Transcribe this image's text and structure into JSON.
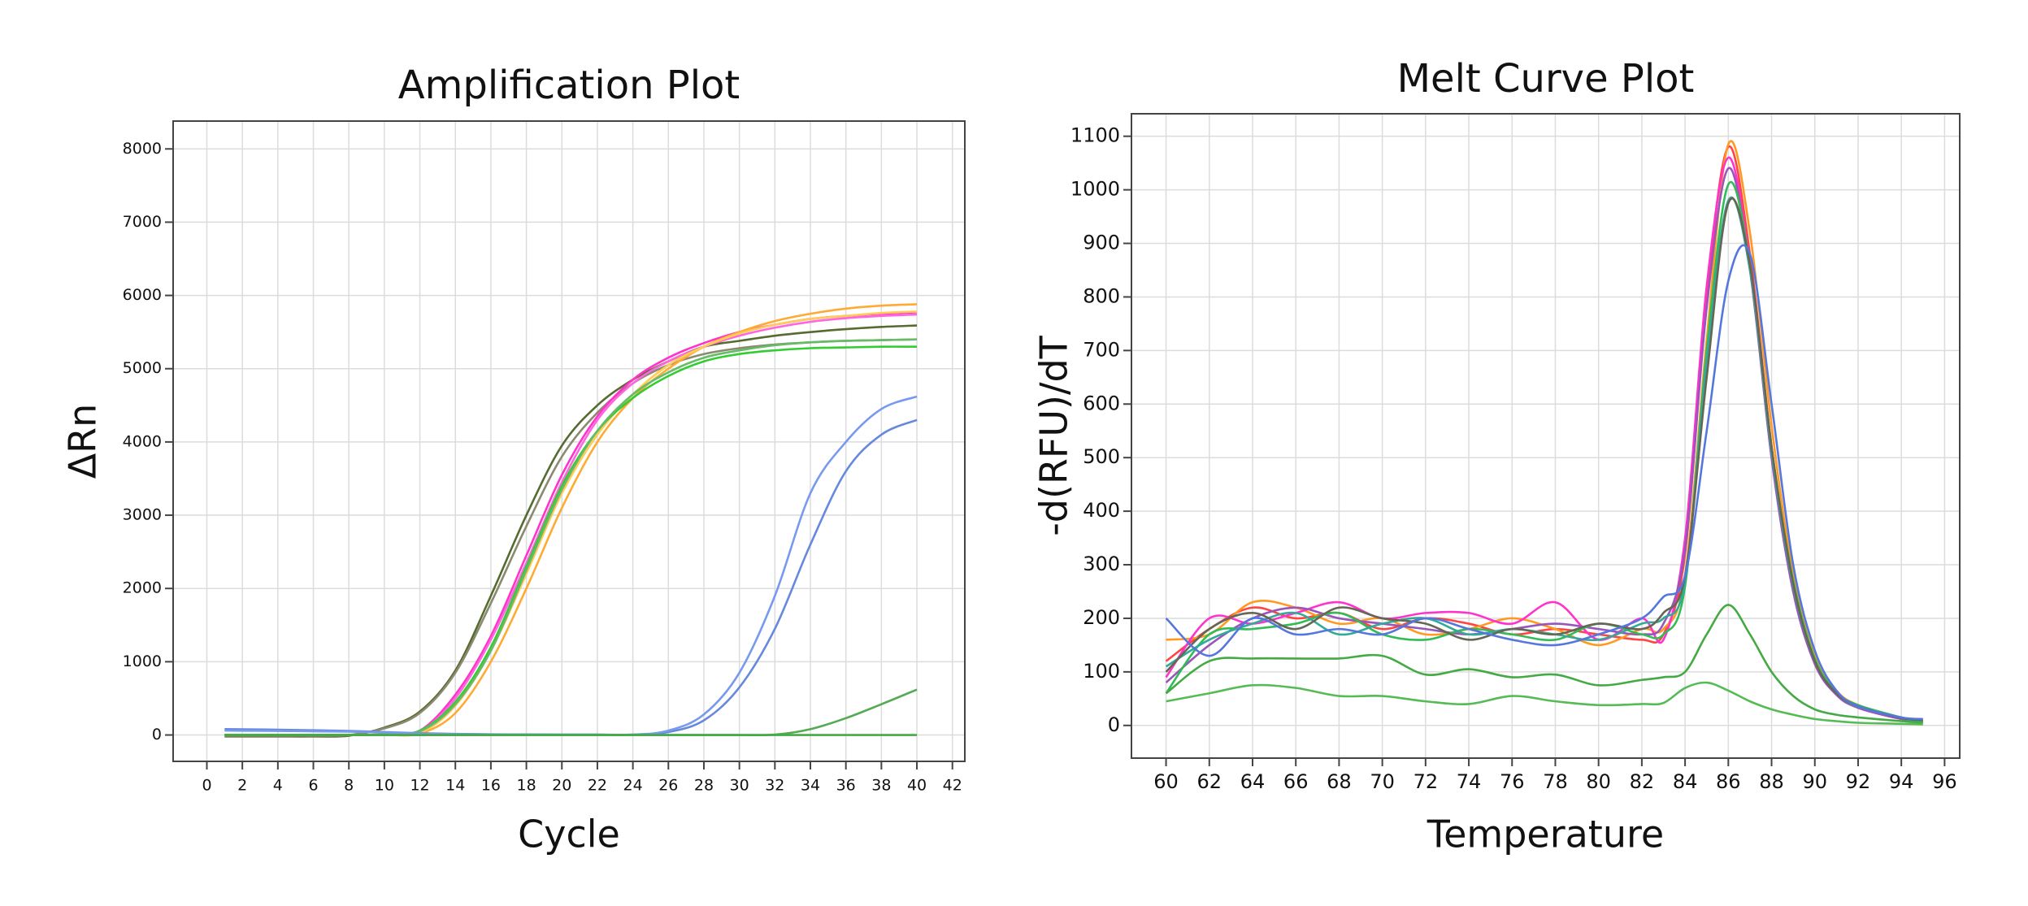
{
  "chart_data": [
    {
      "type": "line",
      "title": "Amplification Plot",
      "xlabel": "Cycle",
      "ylabel": "ΔRn",
      "x": [
        1,
        2,
        4,
        6,
        8,
        10,
        12,
        14,
        16,
        18,
        20,
        22,
        24,
        26,
        28,
        30,
        32,
        34,
        36,
        38,
        40
      ],
      "series": [
        {
          "color": "#556b2f",
          "values": [
            -20,
            -20,
            -20,
            -20,
            -10,
            100,
            320,
            880,
            1900,
            3000,
            3950,
            4500,
            4850,
            5100,
            5300,
            5380,
            5450,
            5500,
            5540,
            5570,
            5590
          ]
        },
        {
          "color": "#8a8a70",
          "values": [
            -10,
            -10,
            -10,
            -10,
            0,
            90,
            300,
            850,
            1800,
            2850,
            3800,
            4400,
            4800,
            5050,
            5200,
            5280,
            5330,
            5360,
            5380,
            5390,
            5400
          ]
        },
        {
          "color": "#ff33cc",
          "values": [
            0,
            0,
            0,
            0,
            0,
            10,
            60,
            550,
            1350,
            2450,
            3550,
            4350,
            4850,
            5150,
            5350,
            5500,
            5600,
            5680,
            5720,
            5750,
            5770
          ]
        },
        {
          "color": "#ff66dd",
          "values": [
            0,
            0,
            0,
            0,
            0,
            10,
            50,
            500,
            1300,
            2350,
            3450,
            4300,
            4800,
            5100,
            5300,
            5450,
            5560,
            5640,
            5690,
            5720,
            5740
          ]
        },
        {
          "color": "#ffaa33",
          "values": [
            0,
            0,
            0,
            0,
            0,
            5,
            20,
            300,
            1000,
            2000,
            3100,
            4000,
            4600,
            5000,
            5300,
            5500,
            5650,
            5750,
            5820,
            5860,
            5880
          ]
        },
        {
          "color": "#ffcc55",
          "values": [
            0,
            0,
            0,
            0,
            0,
            5,
            30,
            400,
            1150,
            2200,
            3300,
            4100,
            4650,
            5050,
            5300,
            5480,
            5600,
            5680,
            5720,
            5760,
            5780
          ]
        },
        {
          "color": "#33cc33",
          "values": [
            0,
            0,
            0,
            0,
            0,
            10,
            60,
            450,
            1200,
            2300,
            3400,
            4150,
            4600,
            4900,
            5100,
            5200,
            5250,
            5280,
            5290,
            5300,
            5300
          ]
        },
        {
          "color": "#66bb66",
          "values": [
            0,
            0,
            0,
            0,
            0,
            10,
            50,
            420,
            1150,
            2250,
            3350,
            4150,
            4650,
            4950,
            5150,
            5250,
            5320,
            5360,
            5380,
            5390,
            5400
          ]
        },
        {
          "color": "#6688dd",
          "values": [
            80,
            78,
            72,
            65,
            55,
            40,
            25,
            15,
            10,
            8,
            6,
            5,
            5,
            40,
            200,
            650,
            1450,
            2600,
            3600,
            4100,
            4300
          ]
        },
        {
          "color": "#7799ee",
          "values": [
            60,
            58,
            55,
            50,
            45,
            35,
            20,
            12,
            8,
            6,
            5,
            5,
            5,
            60,
            280,
            850,
            1900,
            3300,
            4000,
            4450,
            4620
          ]
        },
        {
          "color": "#55aa55",
          "values": [
            0,
            0,
            0,
            0,
            0,
            0,
            0,
            0,
            0,
            0,
            0,
            0,
            0,
            0,
            0,
            0,
            5,
            80,
            230,
            420,
            620
          ]
        },
        {
          "color": "#44aa44",
          "values": [
            0,
            0,
            0,
            0,
            0,
            0,
            0,
            0,
            0,
            0,
            0,
            0,
            0,
            0,
            0,
            0,
            0,
            0,
            0,
            0,
            0
          ]
        }
      ],
      "xlim": [
        -1.9,
        42.7
      ],
      "xticks": [
        0,
        2,
        4,
        6,
        8,
        10,
        12,
        14,
        16,
        18,
        20,
        22,
        24,
        26,
        28,
        30,
        32,
        34,
        36,
        38,
        40,
        42
      ],
      "ylim": [
        -360,
        8380
      ],
      "yticks": [
        0,
        1000,
        2000,
        3000,
        4000,
        5000,
        6000,
        7000,
        8000
      ],
      "grid": true
    },
    {
      "type": "line",
      "title": "Melt Curve Plot",
      "xlabel": "Temperature",
      "ylabel": "-d(RFU)/dT",
      "x": [
        60,
        62,
        64,
        66,
        68,
        70,
        72,
        74,
        76,
        78,
        80,
        82,
        83,
        84,
        85,
        86,
        87,
        88,
        89,
        90,
        91,
        92,
        94,
        95
      ],
      "series": [
        {
          "color": "#ff4444",
          "values": [
            120,
            180,
            220,
            200,
            210,
            180,
            200,
            190,
            170,
            180,
            170,
            160,
            170,
            320,
            800,
            1080,
            880,
            520,
            260,
            120,
            60,
            35,
            12,
            8
          ]
        },
        {
          "color": "#ff9922",
          "values": [
            160,
            170,
            230,
            220,
            190,
            200,
            170,
            180,
            200,
            180,
            150,
            180,
            180,
            280,
            720,
            1085,
            920,
            560,
            280,
            130,
            65,
            38,
            14,
            8
          ]
        },
        {
          "color": "#ff33cc",
          "values": [
            90,
            200,
            190,
            210,
            230,
            200,
            210,
            210,
            190,
            230,
            160,
            200,
            160,
            350,
            820,
            1060,
            860,
            500,
            250,
            115,
            58,
            33,
            12,
            7
          ]
        },
        {
          "color": "#9955bb",
          "values": [
            80,
            150,
            200,
            220,
            200,
            190,
            180,
            170,
            180,
            190,
            180,
            170,
            190,
            330,
            780,
            1040,
            850,
            500,
            250,
            115,
            57,
            33,
            12,
            6
          ]
        },
        {
          "color": "#33bb55",
          "values": [
            60,
            170,
            180,
            190,
            210,
            170,
            160,
            180,
            170,
            160,
            190,
            170,
            170,
            260,
            700,
            1010,
            860,
            520,
            270,
            125,
            62,
            38,
            15,
            6
          ]
        },
        {
          "color": "#33aa99",
          "values": [
            110,
            160,
            190,
            210,
            170,
            190,
            200,
            170,
            180,
            170,
            160,
            190,
            200,
            270,
            680,
            980,
            850,
            510,
            260,
            120,
            60,
            35,
            14,
            5
          ]
        },
        {
          "color": "#666655",
          "values": [
            100,
            180,
            210,
            180,
            220,
            200,
            190,
            160,
            180,
            170,
            190,
            180,
            210,
            280,
            650,
            975,
            860,
            520,
            265,
            120,
            60,
            36,
            14,
            10
          ]
        },
        {
          "color": "#5577dd",
          "values": [
            200,
            130,
            200,
            170,
            180,
            170,
            200,
            180,
            160,
            150,
            170,
            200,
            240,
            280,
            550,
            830,
            880,
            600,
            300,
            140,
            65,
            36,
            15,
            12
          ]
        },
        {
          "color": "#44aa44",
          "values": [
            60,
            120,
            125,
            125,
            125,
            130,
            95,
            105,
            90,
            95,
            75,
            85,
            90,
            100,
            170,
            225,
            170,
            100,
            55,
            30,
            20,
            15,
            8,
            5
          ]
        },
        {
          "color": "#55bb55",
          "values": [
            45,
            60,
            75,
            70,
            55,
            55,
            45,
            40,
            55,
            45,
            38,
            40,
            42,
            70,
            80,
            65,
            45,
            30,
            20,
            12,
            8,
            5,
            3,
            2
          ]
        }
      ],
      "xlim": [
        58.4,
        96.7
      ],
      "xticks": [
        60,
        62,
        64,
        66,
        68,
        70,
        72,
        74,
        76,
        78,
        80,
        82,
        84,
        86,
        88,
        90,
        92,
        94,
        96
      ],
      "ylim": [
        -61,
        1142
      ],
      "yticks": [
        0,
        100,
        200,
        300,
        400,
        500,
        600,
        700,
        800,
        900,
        1000,
        1100
      ],
      "grid": true
    }
  ]
}
